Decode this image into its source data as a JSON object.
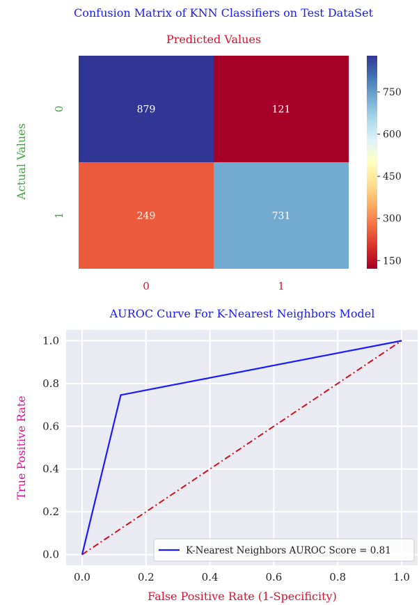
{
  "chart_data": [
    {
      "type": "heatmap",
      "title": "Confusion Matrix of KNN Classifiers on Test DataSet",
      "xlabel": "Predicted Values",
      "ylabel": "Actual Values",
      "x_categories": [
        "0",
        "1"
      ],
      "y_categories": [
        "0",
        "1"
      ],
      "values": [
        [
          879,
          121
        ],
        [
          249,
          731
        ]
      ],
      "colormap": "RdYlBu",
      "colorbar": {
        "ticks": [
          150,
          300,
          450,
          600,
          750
        ],
        "range": [
          121,
          879
        ]
      },
      "colors": {
        "title": "#1a1aff",
        "xlabel": "#e0102a",
        "ylabel": "#3aa83a",
        "xticks": "#e0102a",
        "yticks": "#3aa83a"
      }
    },
    {
      "type": "line",
      "title": "AUROC Curve For K-Nearest Neighbors Model",
      "xlabel": "False Positive Rate (1-Specificity)",
      "ylabel": "True Positive Rate",
      "xlim": [
        -0.05,
        1.05
      ],
      "ylim": [
        -0.05,
        1.05
      ],
      "xticks": [
        0.0,
        0.2,
        0.4,
        0.6,
        0.8,
        1.0
      ],
      "yticks": [
        0.0,
        0.2,
        0.4,
        0.6,
        0.8,
        1.0
      ],
      "tick_labels": [
        "0.0",
        "0.2",
        "0.4",
        "0.6",
        "0.8",
        "1.0"
      ],
      "grid": true,
      "series": [
        {
          "name": "K-Nearest Neighbors AUROC Score = 0.81",
          "x": [
            0.0,
            0.121,
            1.0
          ],
          "y": [
            0.0,
            0.746,
            1.0
          ],
          "color": "#1a1aff",
          "style": "solid"
        },
        {
          "x": [
            0.0,
            1.0
          ],
          "y": [
            0.0,
            1.0
          ],
          "color": "#d0101e",
          "style": "dashdot"
        }
      ],
      "legend": "bottom-right",
      "colors": {
        "title": "#1a1aff",
        "xlabel": "#e0102a",
        "ylabel": "#e0109a",
        "background": "#eaeaf2"
      }
    }
  ]
}
